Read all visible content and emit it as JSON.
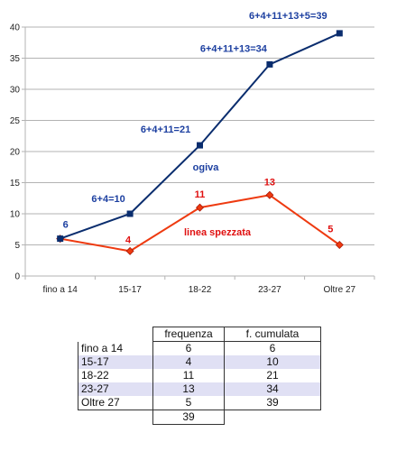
{
  "chart_data": {
    "type": "line",
    "categories": [
      "fino a 14",
      "15-17",
      "18-22",
      "23-27",
      "Oltre 27"
    ],
    "ylim": [
      0,
      40
    ],
    "yticks": [
      0,
      5,
      10,
      15,
      20,
      25,
      30,
      35,
      40
    ],
    "grid": "horizontal",
    "series": [
      {
        "name": "ogiva",
        "color": "#0a2d6e",
        "marker": "square",
        "values": [
          6,
          10,
          21,
          34,
          39
        ],
        "labels": [
          "6",
          "6+4=10",
          "6+4+11=21",
          "6+4+11+13=34",
          "6+4+11+13+5=39"
        ],
        "label_color": "#1c3fa0"
      },
      {
        "name": "linea spezzata",
        "color": "#ee3a10",
        "marker": "diamond",
        "values": [
          6,
          4,
          11,
          13,
          5
        ],
        "labels": [
          "",
          "4",
          "11",
          "13",
          "5"
        ],
        "label_color": "#e01010"
      }
    ]
  },
  "table": {
    "headers": [
      "frequenza",
      "f. cumulata"
    ],
    "rows": [
      {
        "label": "fino a 14",
        "freq": "6",
        "cum": "6"
      },
      {
        "label": "15-17",
        "freq": "4",
        "cum": "10"
      },
      {
        "label": "18-22",
        "freq": "11",
        "cum": "21"
      },
      {
        "label": "23-27",
        "freq": "13",
        "cum": "34"
      },
      {
        "label": "Oltre 27",
        "freq": "5",
        "cum": "39"
      }
    ],
    "total": "39"
  }
}
